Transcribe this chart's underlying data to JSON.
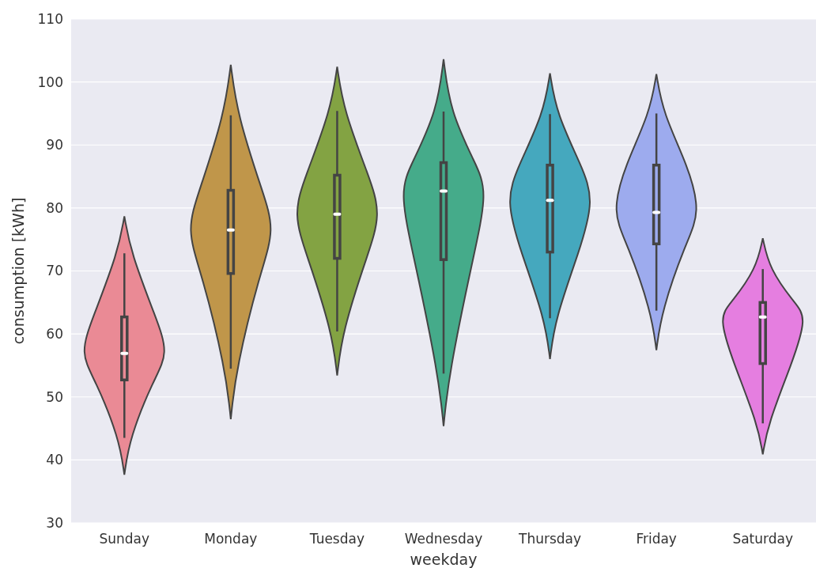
{
  "chart_data": {
    "type": "box",
    "xlabel": "weekday",
    "ylabel": "consumption [kWh]",
    "categories": [
      "Sunday",
      "Monday",
      "Tuesday",
      "Wednesday",
      "Thursday",
      "Friday",
      "Saturday"
    ],
    "colors": [
      "#ea8a95",
      "#c0964a",
      "#83a343",
      "#45ab8a",
      "#45a8be",
      "#9dabee",
      "#e57ee0"
    ],
    "boxes": [
      {
        "low": 43.5,
        "q1": 52.7,
        "median": 56.9,
        "q3": 62.7,
        "high": 72.8
      },
      {
        "low": 54.5,
        "q1": 69.6,
        "median": 76.5,
        "q3": 82.8,
        "high": 94.7
      },
      {
        "low": 60.4,
        "q1": 72,
        "median": 79,
        "q3": 85.2,
        "high": 95.4
      },
      {
        "low": 53.7,
        "q1": 71.8,
        "median": 82.7,
        "q3": 87.2,
        "high": 95.3
      },
      {
        "low": 62.5,
        "q1": 73,
        "median": 81.2,
        "q3": 86.8,
        "high": 94.9
      },
      {
        "low": 63.7,
        "q1": 74.3,
        "median": 79.3,
        "q3": 86.8,
        "high": 95
      },
      {
        "low": 45.8,
        "q1": 55.3,
        "median": 62.7,
        "q3": 65,
        "high": 70.3
      }
    ],
    "ylim": [
      30,
      110
    ],
    "yticks": [
      30,
      40,
      50,
      60,
      70,
      80,
      90,
      100,
      110
    ],
    "grid": "y"
  }
}
